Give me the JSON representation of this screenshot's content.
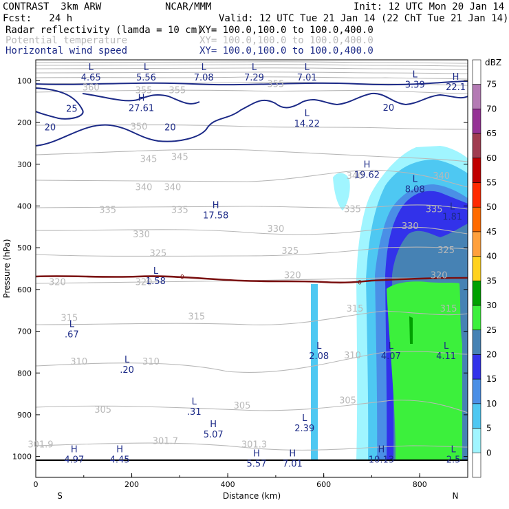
{
  "header": {
    "model": "CONTRAST  3km ARW",
    "org": "NCAR/MMM",
    "init": "Init: 12 UTC Mon 20 Jan 14",
    "fcst": "Fcst:   24 h",
    "valid": "Valid: 12 UTC Tue 21 Jan 14 (22 ChT Tue 21 Jan 14)",
    "fields": [
      {
        "name": "Radar reflectivity (lamda = 10 cm)",
        "xy": "XY= 100.0,100.0 to 100.0,400.0"
      },
      {
        "name": "Potential temperature",
        "xy": "XY= 100.0,100.0 to 100.0,400.0"
      },
      {
        "name": "Horizontal wind speed",
        "xy": "XY= 100.0,100.0 to 100.0,400.0"
      }
    ]
  },
  "colors": {
    "theta": "#b8b8b8",
    "wind": "#1c2a87",
    "freezing": "#7a1010",
    "text_navy": "#1c2a87"
  },
  "chart_data": {
    "type": "cross-section",
    "xlabel": "Distance (km)",
    "ylabel": "Pressure (hPa)",
    "xlim": [
      0,
      900
    ],
    "ylim": [
      1050,
      50
    ],
    "x_ticks": [
      0,
      200,
      400,
      600,
      800
    ],
    "y_ticks": [
      100,
      200,
      300,
      400,
      500,
      600,
      700,
      800,
      900,
      1000
    ],
    "x_end_labels": {
      "left": "S",
      "right": "N"
    },
    "colorbar": {
      "unit": "dBZ",
      "levels": [
        0,
        5,
        10,
        15,
        20,
        25,
        30,
        35,
        40,
        45,
        50,
        55,
        60,
        65,
        70,
        75
      ],
      "colors": [
        "#ffffff",
        "#a0f5ff",
        "#4ec8f2",
        "#4a8fe6",
        "#3232ea",
        "#4682b4",
        "#3cf03c",
        "#00a000",
        "#ffd21e",
        "#ffa03c",
        "#ff6a00",
        "#ff2a00",
        "#c00000",
        "#a03c50",
        "#963296",
        "#b47ab4",
        "#ffffff"
      ]
    },
    "theta_labels": [
      {
        "x": 10,
        "p": 973,
        "text": "301.9"
      },
      {
        "x": 270,
        "p": 965,
        "text": "301.7"
      },
      {
        "x": 455,
        "p": 973,
        "text": "301.3"
      },
      {
        "x": 140,
        "p": 890,
        "text": "305"
      },
      {
        "x": 430,
        "p": 880,
        "text": "305"
      },
      {
        "x": 650,
        "p": 868,
        "text": "305"
      },
      {
        "x": 90,
        "p": 775,
        "text": "310"
      },
      {
        "x": 240,
        "p": 775,
        "text": "310"
      },
      {
        "x": 660,
        "p": 760,
        "text": "310"
      },
      {
        "x": 70,
        "p": 670,
        "text": "315"
      },
      {
        "x": 335,
        "p": 667,
        "text": "315"
      },
      {
        "x": 665,
        "p": 648,
        "text": "315"
      },
      {
        "x": 860,
        "p": 648,
        "text": "315"
      },
      {
        "x": 45,
        "p": 585,
        "text": "320"
      },
      {
        "x": 225,
        "p": 585,
        "text": "320"
      },
      {
        "x": 535,
        "p": 568,
        "text": "320"
      },
      {
        "x": 840,
        "p": 568,
        "text": "320"
      },
      {
        "x": 255,
        "p": 515,
        "text": "325"
      },
      {
        "x": 530,
        "p": 510,
        "text": "325"
      },
      {
        "x": 855,
        "p": 508,
        "text": "325"
      },
      {
        "x": 220,
        "p": 470,
        "text": "330"
      },
      {
        "x": 500,
        "p": 457,
        "text": "330"
      },
      {
        "x": 780,
        "p": 450,
        "text": "330"
      },
      {
        "x": 150,
        "p": 412,
        "text": "335"
      },
      {
        "x": 300,
        "p": 412,
        "text": "335"
      },
      {
        "x": 660,
        "p": 410,
        "text": "335"
      },
      {
        "x": 830,
        "p": 410,
        "text": "335"
      },
      {
        "x": 225,
        "p": 357,
        "text": "340"
      },
      {
        "x": 285,
        "p": 357,
        "text": "340"
      },
      {
        "x": 665,
        "p": 330,
        "text": "340"
      },
      {
        "x": 845,
        "p": 330,
        "text": "340"
      },
      {
        "x": 235,
        "p": 290,
        "text": "345"
      },
      {
        "x": 300,
        "p": 285,
        "text": "345"
      },
      {
        "x": 215,
        "p": 212,
        "text": "350"
      },
      {
        "x": 225,
        "p": 125,
        "text": "355"
      },
      {
        "x": 295,
        "p": 125,
        "text": "355"
      },
      {
        "x": 500,
        "p": 110,
        "text": "355"
      },
      {
        "x": 115,
        "p": 118,
        "text": "360"
      }
    ],
    "wind_labels": [
      {
        "x": 75,
        "p": 168,
        "text": "25"
      },
      {
        "x": 30,
        "p": 212,
        "text": "20"
      },
      {
        "x": 280,
        "p": 212,
        "text": "20"
      },
      {
        "x": 735,
        "p": 165,
        "text": "20"
      }
    ],
    "freezing_label": {
      "x": 305,
      "p": 570,
      "text": "0"
    },
    "freezing_label2": {
      "x": 675,
      "p": 583,
      "text": "0"
    },
    "extrema": [
      {
        "kind": "L",
        "value": "4.65",
        "x": 115,
        "p": 85
      },
      {
        "kind": "L",
        "value": "5.56",
        "x": 230,
        "p": 85
      },
      {
        "kind": "L",
        "value": "7.08",
        "x": 350,
        "p": 85
      },
      {
        "kind": "L",
        "value": "7.29",
        "x": 455,
        "p": 85
      },
      {
        "kind": "L",
        "value": "7.01",
        "x": 565,
        "p": 85
      },
      {
        "kind": "L",
        "value": "3.39",
        "x": 790,
        "p": 102
      },
      {
        "kind": "H",
        "value": "22.1",
        "x": 875,
        "p": 108
      },
      {
        "kind": "H",
        "value": "27.61",
        "x": 220,
        "p": 158
      },
      {
        "kind": "L",
        "value": "14.22",
        "x": 565,
        "p": 195
      },
      {
        "kind": "H",
        "value": "19.62",
        "x": 690,
        "p": 318
      },
      {
        "kind": "L",
        "value": "8.08",
        "x": 790,
        "p": 352
      },
      {
        "kind": "L",
        "value": "1.81",
        "x": 868,
        "p": 418
      },
      {
        "kind": "H",
        "value": "17.58",
        "x": 375,
        "p": 415
      },
      {
        "kind": "L",
        "value": "1.58",
        "x": 250,
        "p": 572
      },
      {
        "kind": "L",
        "value": ".67",
        "x": 75,
        "p": 700
      },
      {
        "kind": "L",
        "value": ".20",
        "x": 190,
        "p": 785
      },
      {
        "kind": "L",
        "value": "2.08",
        "x": 590,
        "p": 752
      },
      {
        "kind": "L",
        "value": "4.07",
        "x": 740,
        "p": 752
      },
      {
        "kind": "L",
        "value": "4.11",
        "x": 855,
        "p": 752
      },
      {
        "kind": "L",
        "value": ".31",
        "x": 330,
        "p": 885
      },
      {
        "kind": "H",
        "value": "5.07",
        "x": 370,
        "p": 940
      },
      {
        "kind": "L",
        "value": "2.39",
        "x": 560,
        "p": 925
      },
      {
        "kind": "H",
        "value": "4.97",
        "x": 80,
        "p": 1000
      },
      {
        "kind": "H",
        "value": "4.45",
        "x": 175,
        "p": 1000
      },
      {
        "kind": "H",
        "value": "5.57",
        "x": 460,
        "p": 1010
      },
      {
        "kind": "H",
        "value": "7.01",
        "x": 535,
        "p": 1010
      },
      {
        "kind": "H",
        "value": "10.13",
        "x": 720,
        "p": 1000
      },
      {
        "kind": "L",
        "value": "2.5",
        "x": 870,
        "p": 1000
      }
    ]
  }
}
